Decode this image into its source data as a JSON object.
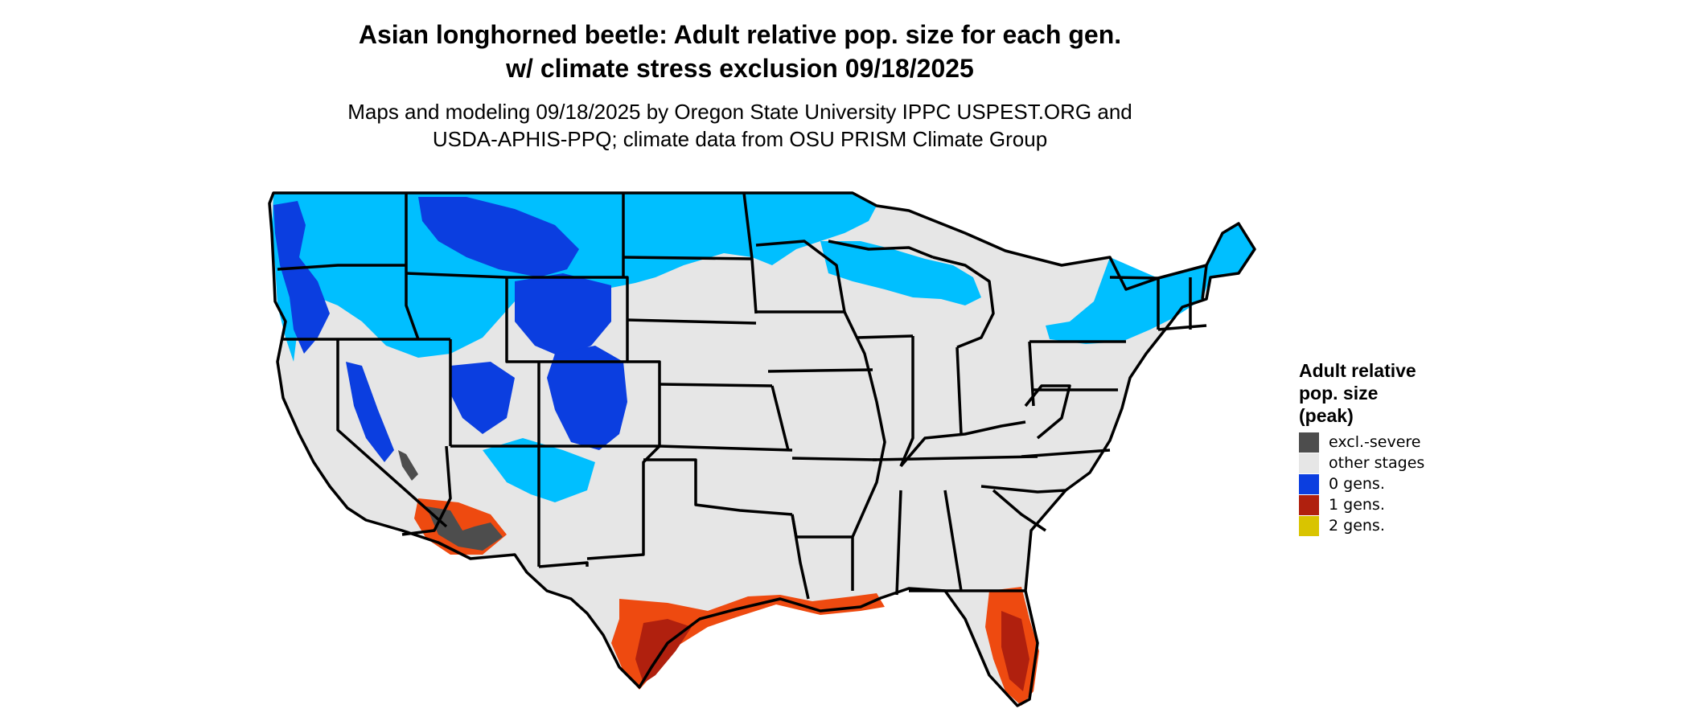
{
  "title_line1": "Asian longhorned beetle: Adult relative pop. size for each gen.",
  "title_line2": "w/ climate stress exclusion 09/18/2025",
  "subtitle_line1": "Maps and modeling 09/18/2025 by Oregon State University IPPC USPEST.ORG and",
  "subtitle_line2": "USDA-APHIS-PPQ; climate data from OSU PRISM Climate Group",
  "legend": {
    "title_line1": "Adult relative",
    "title_line2": "pop. size",
    "title_line3": "(peak)",
    "items": [
      {
        "label": "excl.-severe",
        "color": "#4d4d4d"
      },
      {
        "label": "other stages",
        "color": "#e6e6e6"
      },
      {
        "label": "0 gens.",
        "color": "#0b3ee0"
      },
      {
        "label": "1 gens.",
        "color": "#b0200e"
      },
      {
        "label": "2 gens.",
        "color": "#d9c400"
      }
    ]
  },
  "colors": {
    "background_land": "#e6e6e6",
    "cyan_zone": "#00bfff",
    "blue_zone": "#0b3ee0",
    "orange_zone": "#ee4a10",
    "red_zone": "#b0200e",
    "excluded": "#4d4d4d",
    "borders": "#000000"
  }
}
